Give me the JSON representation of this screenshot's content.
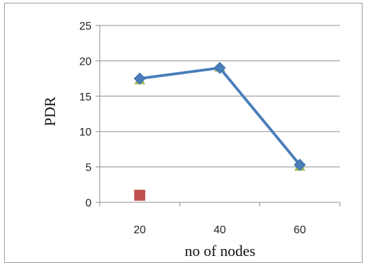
{
  "chart_data": {
    "type": "line",
    "title": "",
    "xlabel": "no of nodes",
    "ylabel": "PDR",
    "categories": [
      "20",
      "40",
      "60"
    ],
    "ylim": [
      0,
      25
    ],
    "yticks": [
      "0",
      "5",
      "10",
      "15",
      "20",
      "25"
    ],
    "grid": true,
    "series": [
      {
        "marker": "diamond",
        "color": "#4a7ebb",
        "line": true,
        "values": [
          17.5,
          19.0,
          5.3
        ]
      },
      {
        "marker": "square",
        "color": "#c0504d",
        "line": false,
        "values": [
          1.0,
          null,
          null
        ]
      },
      {
        "marker": "triangle",
        "color": "#9bbb59",
        "line": false,
        "values": [
          17.3,
          19.1,
          5.1
        ]
      }
    ]
  }
}
